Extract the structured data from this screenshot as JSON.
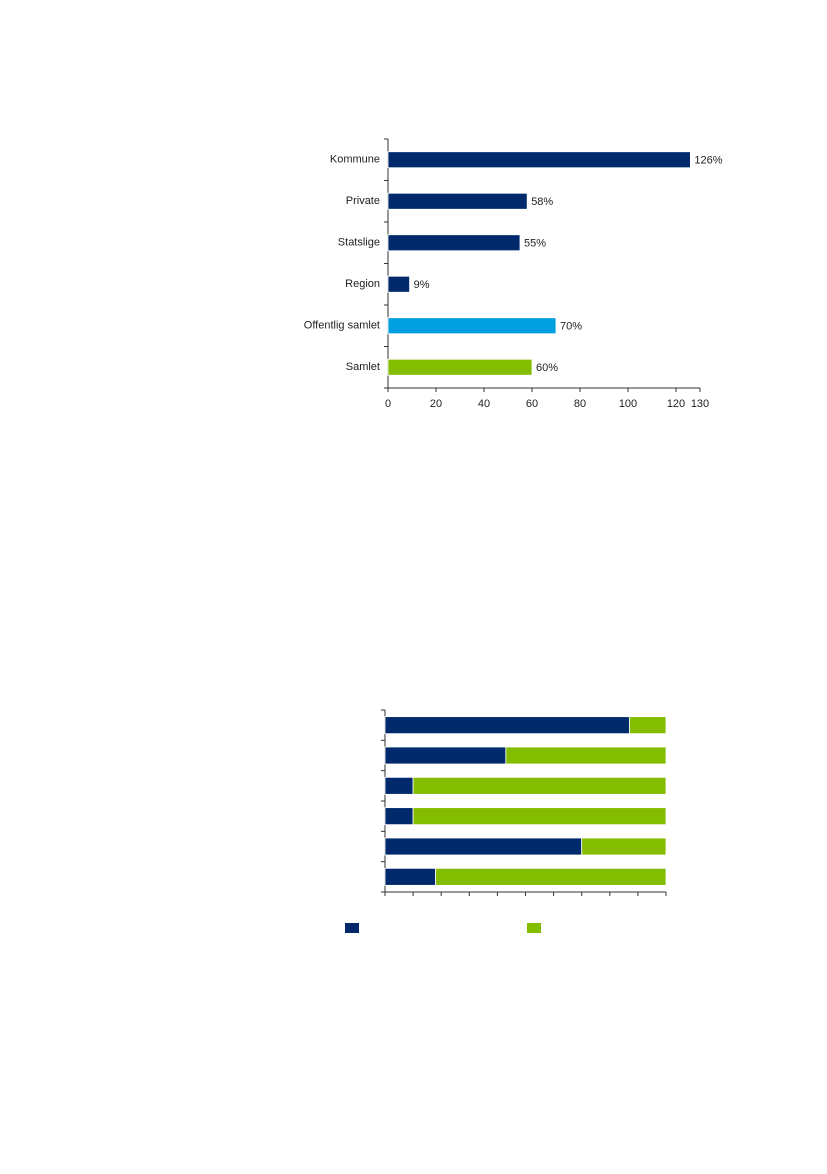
{
  "chart_data": [
    {
      "type": "bar",
      "orientation": "horizontal",
      "categories": [
        "Kommune",
        "Private",
        "Statslige",
        "Region",
        "Offentlig samlet",
        "Samlet"
      ],
      "values": [
        126,
        58,
        55,
        9,
        70,
        60
      ],
      "value_labels": [
        "126%",
        "58%",
        "55%",
        "9%",
        "70%",
        "60%"
      ],
      "colors": [
        "#002a6c",
        "#002a6c",
        "#002a6c",
        "#002a6c",
        "#00a0e0",
        "#84bd00"
      ],
      "xlim": [
        0,
        130
      ],
      "xticks": [
        0,
        20,
        40,
        60,
        80,
        100,
        120,
        130
      ]
    },
    {
      "type": "stacked_bar",
      "orientation": "horizontal",
      "categories": [
        null,
        null,
        null,
        null,
        null,
        null
      ],
      "series": [
        {
          "color": "#002a6c",
          "values": [
            87,
            43,
            10,
            10,
            70,
            18
          ]
        },
        {
          "color": "#84bd00",
          "values": [
            13,
            57,
            90,
            90,
            30,
            82
          ]
        }
      ],
      "xlim": [
        0,
        100
      ],
      "xticks": [
        0,
        10,
        20,
        30,
        40,
        50,
        60,
        70,
        80,
        90,
        100
      ]
    }
  ]
}
